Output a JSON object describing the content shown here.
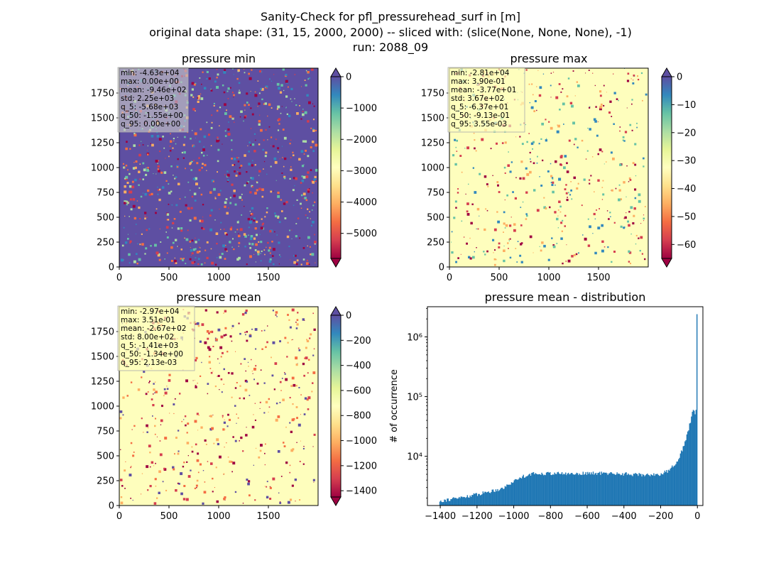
{
  "figure": {
    "title_lines": [
      "Sanity-Check for pfl_pressurehead_surf in [m]",
      "original data shape: (31, 15, 2000, 2000) -- sliced with: (slice(None, None, None), -1)",
      "run: 2088_09"
    ]
  },
  "chart_data": [
    {
      "type": "heatmap",
      "title": "pressure min",
      "colormap": "Spectral",
      "xlim": [
        0,
        2000
      ],
      "ylim": [
        0,
        2000
      ],
      "xticks": [
        "0",
        "500",
        "1000",
        "1500"
      ],
      "yticks": [
        "0",
        "250",
        "500",
        "750",
        "1000",
        "1250",
        "1500",
        "1750"
      ],
      "colorbar": {
        "min": -5800,
        "max": 0,
        "ticks": [
          0,
          -1000,
          -2000,
          -3000,
          -4000,
          -5000
        ],
        "extend": "both"
      },
      "background_color": "#5e4fa2",
      "stats": [
        "min: -4.63e+04",
        "max: 0.00e+00",
        "mean: -9.46e+02",
        "std: 2.25e+03",
        "q_5: -5.68e+03",
        "q_50: -1.55e+00",
        "q_95: 0.00e+00"
      ]
    },
    {
      "type": "heatmap",
      "title": "pressure max",
      "colormap": "Spectral",
      "xlim": [
        0,
        2000
      ],
      "ylim": [
        0,
        2000
      ],
      "xticks": [
        "0",
        "500",
        "1000",
        "1500"
      ],
      "yticks": [
        "0",
        "250",
        "500",
        "750",
        "1000",
        "1250",
        "1500",
        "1750"
      ],
      "colorbar": {
        "min": -65,
        "max": 0,
        "ticks": [
          0,
          -10,
          -20,
          -30,
          -40,
          -50,
          -60
        ],
        "extend": "both"
      },
      "background_color": "#fefebd",
      "stats": [
        "min: -2.81e+04",
        "max: 3.90e-01",
        "mean: -3.77e+01",
        "std: 3.67e+02",
        "q_5: -6.37e+01",
        "q_50: -9.13e-01",
        "q_95: 3.55e-03"
      ]
    },
    {
      "type": "heatmap",
      "title": "pressure mean",
      "colormap": "Spectral",
      "xlim": [
        0,
        2000
      ],
      "ylim": [
        0,
        2000
      ],
      "xticks": [
        "0",
        "500",
        "1000",
        "1500"
      ],
      "yticks": [
        "0",
        "250",
        "500",
        "750",
        "1000",
        "1250",
        "1500",
        "1750"
      ],
      "colorbar": {
        "min": -1450,
        "max": 0,
        "ticks": [
          0,
          -200,
          -400,
          -600,
          -800,
          -1000,
          -1200,
          -1400
        ],
        "extend": "both"
      },
      "background_color": "#fefebd",
      "stats": [
        "min: -2.97e+04",
        "max: 3.51e-01",
        "mean: -2.67e+02",
        "std: 8.00e+02",
        "q_5: -1.41e+03",
        "q_50: -1.34e+00",
        "q_95: 2.13e-03"
      ]
    },
    {
      "type": "bar",
      "title": "pressure mean - distribution",
      "ylabel": "# of occurrence",
      "xlabel": "",
      "yscale": "log",
      "xlim": [
        -1470,
        30
      ],
      "ylim": [
        1500,
        3200000
      ],
      "xticks": [
        -1400,
        -1200,
        -1000,
        -800,
        -600,
        -400,
        -200,
        0
      ],
      "yticks": [
        {
          "value": 10000,
          "label": "10⁴"
        },
        {
          "value": 100000,
          "label": "10⁵"
        },
        {
          "value": 1000000,
          "label": "10⁶"
        }
      ],
      "bar_color": "#1f77b4",
      "histogram": {
        "x": [
          -1400,
          -1300,
          -1200,
          -1100,
          -1050,
          -1000,
          -950,
          -900,
          -800,
          -700,
          -600,
          -500,
          -400,
          -300,
          -200,
          -150,
          -100,
          -75,
          -50,
          -30,
          -20,
          -15,
          -10,
          -5,
          0
        ],
        "y": [
          1800,
          2000,
          2300,
          2700,
          3000,
          3800,
          4600,
          5100,
          5200,
          5100,
          5200,
          5200,
          5100,
          4900,
          5000,
          5800,
          9000,
          14000,
          25000,
          45000,
          62000,
          55000,
          48000,
          60000,
          2400000
        ]
      }
    }
  ]
}
